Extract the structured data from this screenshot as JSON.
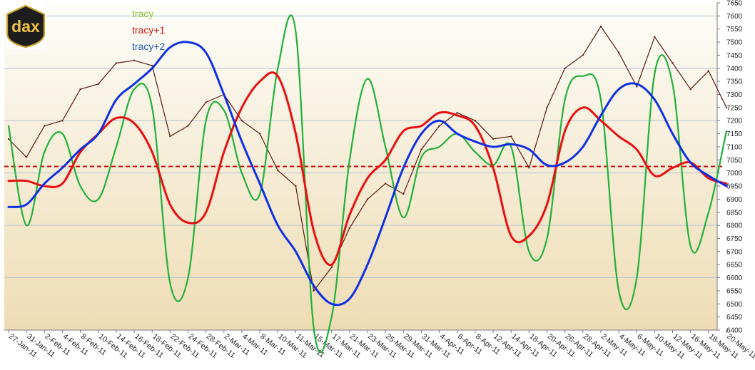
{
  "logo": {
    "text": "dax"
  },
  "colors": {
    "index": "#5a1a10",
    "tracy": "#22b03a",
    "tracy_plus_1": "#e81010",
    "tracy_plus_2": "#1030e0",
    "reference": "#cc1010",
    "legend_tracy": "#8cc63e",
    "legend_tracy_plus_1": "#d01818",
    "legend_tracy_plus_2": "#2060c0",
    "background_top": "#fdfdf9",
    "background_bottom": "#eedcb4",
    "grid": "#b8c2cc"
  },
  "chart_data": {
    "type": "line",
    "title": "",
    "xlabel": "",
    "ylabel": "",
    "legend": {
      "placement": "top-left",
      "entries": [
        "tracy",
        "tracy+1",
        "tracy+2"
      ]
    },
    "grid": true,
    "y_axis_side": "right",
    "ylim": [
      6400,
      7650
    ],
    "yticks": [
      6400,
      6450,
      6500,
      6550,
      6600,
      6650,
      6700,
      6750,
      6800,
      6850,
      6900,
      6950,
      7000,
      7050,
      7100,
      7150,
      7200,
      7250,
      7300,
      7350,
      7400,
      7450,
      7500,
      7550,
      7600,
      7650
    ],
    "ytick_labels": [
      "6400",
      "6450",
      "6500",
      "6550",
      "6600",
      "6650",
      "6700",
      "6750",
      "6800",
      "6850",
      "6900",
      "6950",
      "7000",
      "7050",
      "7100",
      "7150",
      "7200",
      "7250",
      "7300",
      "7350",
      "7400",
      "7450",
      "7500",
      "7550",
      "7600",
      "7650"
    ],
    "gridlines": [
      6600,
      6800,
      7000,
      7200,
      7400,
      7600
    ],
    "xlim": [
      "2011-01-27",
      "2011-05-20"
    ],
    "xtick_labels": [
      "27-Jan-11",
      "31-Jan-11",
      "2-Feb-11",
      "4-Feb-11",
      "8-Feb-11",
      "10-Feb-11",
      "14-Feb-11",
      "16-Feb-11",
      "18-Feb-11",
      "22-Feb-11",
      "24-Feb-11",
      "28-Feb-11",
      "2-Mar-11",
      "4-Mar-11",
      "8-Mar-11",
      "10-Mar-11",
      "11-Mar-11",
      "15-Mar-11",
      "17-Mar-11",
      "21-Mar-11",
      "23-Mar-11",
      "25-Mar-11",
      "29-Mar-11",
      "31-Mar-11",
      "4-Apr-11",
      "6-Apr-11",
      "8-Apr-11",
      "12-Apr-11",
      "14-Apr-11",
      "18-Apr-11",
      "20-Apr-11",
      "26-Apr-11",
      "28-Apr-11",
      "2-May-11",
      "4-May-11",
      "6-May-11",
      "10-May-11",
      "12-May-11",
      "16-May-11",
      "18-May-11",
      "20-May-11"
    ],
    "reference_line": {
      "y": 7025,
      "style": "dashed"
    },
    "series": [
      {
        "name": "",
        "role": "index",
        "points": [
          [
            "27-Jan-11",
            7130
          ],
          [
            "31-Jan-11",
            7060
          ],
          [
            "2-Feb-11",
            7180
          ],
          [
            "4-Feb-11",
            7200
          ],
          [
            "8-Feb-11",
            7320
          ],
          [
            "10-Feb-11",
            7340
          ],
          [
            "14-Feb-11",
            7420
          ],
          [
            "16-Feb-11",
            7430
          ],
          [
            "18-Feb-11",
            7410
          ],
          [
            "22-Feb-11",
            7140
          ],
          [
            "24-Feb-11",
            7180
          ],
          [
            "28-Feb-11",
            7270
          ],
          [
            "2-Mar-11",
            7300
          ],
          [
            "4-Mar-11",
            7200
          ],
          [
            "8-Mar-11",
            7150
          ],
          [
            "10-Mar-11",
            7010
          ],
          [
            "11-Mar-11",
            6950
          ],
          [
            "15-Mar-11",
            6550
          ],
          [
            "17-Mar-11",
            6640
          ],
          [
            "21-Mar-11",
            6790
          ],
          [
            "23-Mar-11",
            6900
          ],
          [
            "25-Mar-11",
            6960
          ],
          [
            "29-Mar-11",
            6920
          ],
          [
            "31-Mar-11",
            7090
          ],
          [
            "4-Apr-11",
            7180
          ],
          [
            "6-Apr-11",
            7230
          ],
          [
            "8-Apr-11",
            7200
          ],
          [
            "12-Apr-11",
            7130
          ],
          [
            "14-Apr-11",
            7140
          ],
          [
            "18-Apr-11",
            7020
          ],
          [
            "20-Apr-11",
            7250
          ],
          [
            "26-Apr-11",
            7400
          ],
          [
            "28-Apr-11",
            7450
          ],
          [
            "2-May-11",
            7560
          ],
          [
            "4-May-11",
            7460
          ],
          [
            "6-May-11",
            7330
          ],
          [
            "10-May-11",
            7520
          ],
          [
            "12-May-11",
            7420
          ],
          [
            "16-May-11",
            7320
          ],
          [
            "18-May-11",
            7390
          ],
          [
            "20-May-11",
            7250
          ]
        ]
      },
      {
        "name": "tracy",
        "points": [
          [
            "27-Jan-11",
            7180
          ],
          [
            "31-Jan-11",
            6800
          ],
          [
            "2-Feb-11",
            7080
          ],
          [
            "4-Feb-11",
            7150
          ],
          [
            "8-Feb-11",
            6950
          ],
          [
            "10-Feb-11",
            6900
          ],
          [
            "14-Feb-11",
            7100
          ],
          [
            "16-Feb-11",
            7320
          ],
          [
            "18-Feb-11",
            7250
          ],
          [
            "22-Feb-11",
            6580
          ],
          [
            "24-Feb-11",
            6600
          ],
          [
            "28-Feb-11",
            7200
          ],
          [
            "2-Mar-11",
            7240
          ],
          [
            "4-Mar-11",
            7000
          ],
          [
            "8-Mar-11",
            6920
          ],
          [
            "10-Mar-11",
            7400
          ],
          [
            "11-Mar-11",
            7540
          ],
          [
            "15-Mar-11",
            6410
          ],
          [
            "17-Mar-11",
            6450
          ],
          [
            "21-Mar-11",
            7050
          ],
          [
            "23-Mar-11",
            7360
          ],
          [
            "25-Mar-11",
            7100
          ],
          [
            "29-Mar-11",
            6830
          ],
          [
            "31-Mar-11",
            7060
          ],
          [
            "4-Apr-11",
            7100
          ],
          [
            "6-Apr-11",
            7150
          ],
          [
            "8-Apr-11",
            7080
          ],
          [
            "12-Apr-11",
            7030
          ],
          [
            "14-Apr-11",
            7100
          ],
          [
            "18-Apr-11",
            6700
          ],
          [
            "20-Apr-11",
            6750
          ],
          [
            "26-Apr-11",
            7280
          ],
          [
            "28-Apr-11",
            7370
          ],
          [
            "2-May-11",
            7280
          ],
          [
            "4-May-11",
            6550
          ],
          [
            "6-May-11",
            6600
          ],
          [
            "10-May-11",
            7380
          ],
          [
            "12-May-11",
            7340
          ],
          [
            "16-May-11",
            6720
          ],
          [
            "18-May-11",
            6850
          ],
          [
            "20-May-11",
            7160
          ]
        ]
      },
      {
        "name": "tracy+1",
        "points": [
          [
            "27-Jan-11",
            6970
          ],
          [
            "31-Jan-11",
            6970
          ],
          [
            "2-Feb-11",
            6950
          ],
          [
            "4-Feb-11",
            6960
          ],
          [
            "8-Feb-11",
            7080
          ],
          [
            "10-Feb-11",
            7150
          ],
          [
            "14-Feb-11",
            7210
          ],
          [
            "16-Feb-11",
            7190
          ],
          [
            "18-Feb-11",
            7080
          ],
          [
            "22-Feb-11",
            6880
          ],
          [
            "24-Feb-11",
            6810
          ],
          [
            "28-Feb-11",
            6850
          ],
          [
            "2-Mar-11",
            7080
          ],
          [
            "4-Mar-11",
            7250
          ],
          [
            "8-Mar-11",
            7350
          ],
          [
            "10-Mar-11",
            7370
          ],
          [
            "11-Mar-11",
            7150
          ],
          [
            "15-Mar-11",
            6780
          ],
          [
            "17-Mar-11",
            6650
          ],
          [
            "21-Mar-11",
            6840
          ],
          [
            "23-Mar-11",
            6980
          ],
          [
            "25-Mar-11",
            7050
          ],
          [
            "29-Mar-11",
            7160
          ],
          [
            "31-Mar-11",
            7180
          ],
          [
            "4-Apr-11",
            7230
          ],
          [
            "6-Apr-11",
            7220
          ],
          [
            "8-Apr-11",
            7180
          ],
          [
            "12-Apr-11",
            7020
          ],
          [
            "14-Apr-11",
            6760
          ],
          [
            "18-Apr-11",
            6760
          ],
          [
            "20-Apr-11",
            6880
          ],
          [
            "26-Apr-11",
            7160
          ],
          [
            "28-Apr-11",
            7250
          ],
          [
            "2-May-11",
            7200
          ],
          [
            "4-May-11",
            7140
          ],
          [
            "6-May-11",
            7090
          ],
          [
            "10-May-11",
            6990
          ],
          [
            "12-May-11",
            7020
          ],
          [
            "16-May-11",
            7040
          ],
          [
            "18-May-11",
            6980
          ],
          [
            "20-May-11",
            6960
          ]
        ]
      },
      {
        "name": "tracy+2",
        "points": [
          [
            "27-Jan-11",
            6870
          ],
          [
            "31-Jan-11",
            6880
          ],
          [
            "2-Feb-11",
            6960
          ],
          [
            "4-Feb-11",
            7020
          ],
          [
            "8-Feb-11",
            7090
          ],
          [
            "10-Feb-11",
            7150
          ],
          [
            "14-Feb-11",
            7280
          ],
          [
            "16-Feb-11",
            7340
          ],
          [
            "18-Feb-11",
            7400
          ],
          [
            "22-Feb-11",
            7480
          ],
          [
            "24-Feb-11",
            7500
          ],
          [
            "28-Feb-11",
            7460
          ],
          [
            "2-Mar-11",
            7300
          ],
          [
            "4-Mar-11",
            7120
          ],
          [
            "8-Mar-11",
            6960
          ],
          [
            "10-Mar-11",
            6800
          ],
          [
            "11-Mar-11",
            6700
          ],
          [
            "15-Mar-11",
            6570
          ],
          [
            "17-Mar-11",
            6500
          ],
          [
            "21-Mar-11",
            6520
          ],
          [
            "23-Mar-11",
            6650
          ],
          [
            "25-Mar-11",
            6830
          ],
          [
            "29-Mar-11",
            7020
          ],
          [
            "31-Mar-11",
            7150
          ],
          [
            "4-Apr-11",
            7200
          ],
          [
            "6-Apr-11",
            7150
          ],
          [
            "8-Apr-11",
            7120
          ],
          [
            "12-Apr-11",
            7100
          ],
          [
            "14-Apr-11",
            7110
          ],
          [
            "18-Apr-11",
            7090
          ],
          [
            "20-Apr-11",
            7030
          ],
          [
            "26-Apr-11",
            7040
          ],
          [
            "28-Apr-11",
            7100
          ],
          [
            "2-May-11",
            7220
          ],
          [
            "4-May-11",
            7320
          ],
          [
            "6-May-11",
            7340
          ],
          [
            "10-May-11",
            7280
          ],
          [
            "12-May-11",
            7150
          ],
          [
            "16-May-11",
            7040
          ],
          [
            "18-May-11",
            6990
          ],
          [
            "20-May-11",
            6950
          ]
        ]
      }
    ]
  }
}
